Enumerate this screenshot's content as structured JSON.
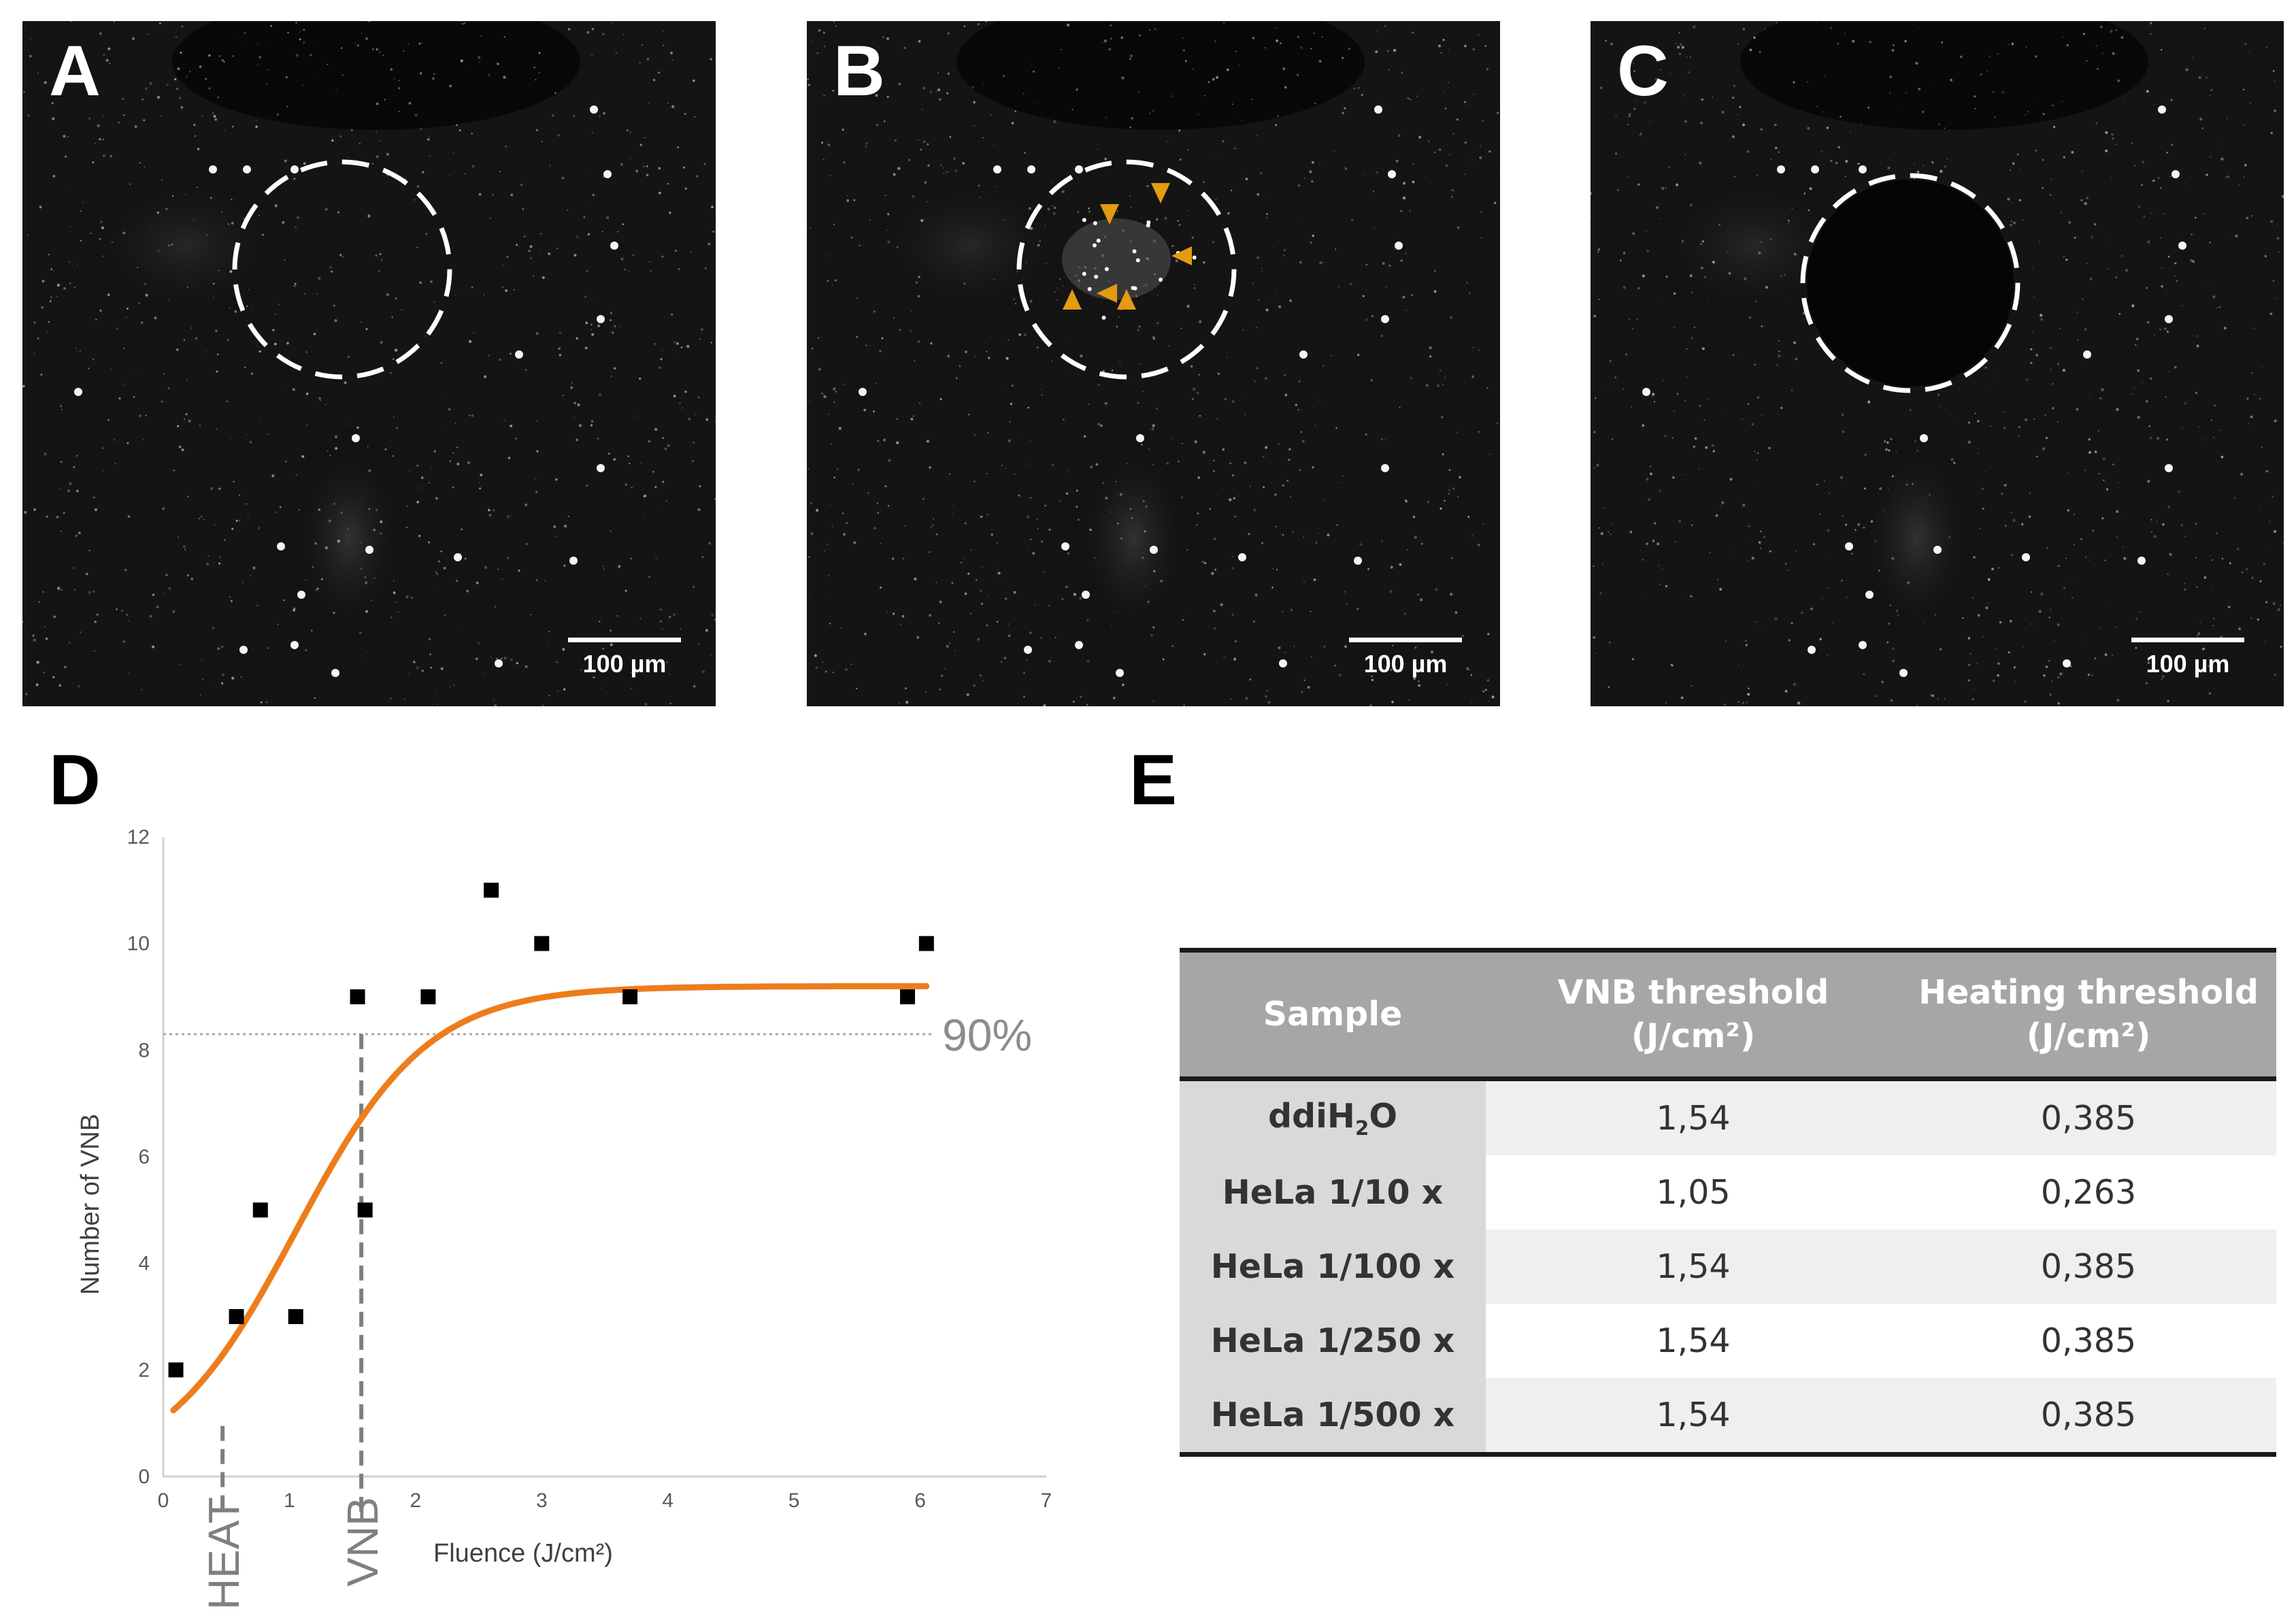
{
  "panels": {
    "A": {
      "letter": "A",
      "scale_label": "100 µm"
    },
    "B": {
      "letter": "B",
      "scale_label": "100 µm"
    },
    "C": {
      "letter": "C",
      "scale_label": "100 µm"
    },
    "D": {
      "letter": "D"
    },
    "E": {
      "letter": "E"
    }
  },
  "colors": {
    "fit_curve": "#ed7d1c",
    "arrowhead": "#e39b11",
    "guide": "#7f7f7f",
    "table_header": "#a6a6a6"
  },
  "chart_data": {
    "type": "scatter",
    "title": "",
    "xlabel": "Fluence (J/cm²)",
    "ylabel": "Number of VNB",
    "xlim": [
      0,
      7
    ],
    "ylim": [
      0,
      12
    ],
    "xticks": [
      0,
      1,
      2,
      3,
      4,
      5,
      6,
      7
    ],
    "yticks": [
      0,
      2,
      4,
      6,
      8,
      10,
      12
    ],
    "points": [
      {
        "x": 0.1,
        "y": 2
      },
      {
        "x": 0.58,
        "y": 3
      },
      {
        "x": 0.77,
        "y": 5
      },
      {
        "x": 1.05,
        "y": 3
      },
      {
        "x": 1.54,
        "y": 9
      },
      {
        "x": 1.6,
        "y": 5
      },
      {
        "x": 2.1,
        "y": 9
      },
      {
        "x": 2.6,
        "y": 11
      },
      {
        "x": 3.0,
        "y": 10
      },
      {
        "x": 3.7,
        "y": 9
      },
      {
        "x": 5.9,
        "y": 9
      },
      {
        "x": 6.05,
        "y": 10
      }
    ],
    "fit": {
      "model": "logistic",
      "top": 9.2,
      "x0": 1.05,
      "slope": 5.5,
      "x_range": [
        0.08,
        6.05
      ]
    },
    "threshold_line": {
      "y": 8.3,
      "label": "90%"
    },
    "markers": [
      {
        "x": 0.47,
        "label": "HEAT"
      },
      {
        "x": 1.57,
        "label": "VNB"
      }
    ]
  },
  "table": {
    "headers": [
      "Sample",
      "VNB threshold",
      "Heating threshold"
    ],
    "unit": "(J/cm²)",
    "rows": [
      {
        "sample_base": "ddiH",
        "sample_sub": "2",
        "sample_tail": "O",
        "vnb": "1,54",
        "heat": "0,385"
      },
      {
        "sample_base": "HeLa 1/10 x",
        "sample_sub": "",
        "sample_tail": "",
        "vnb": "1,05",
        "heat": "0,263"
      },
      {
        "sample_base": "HeLa 1/100 x",
        "sample_sub": "",
        "sample_tail": "",
        "vnb": "1,54",
        "heat": "0,385"
      },
      {
        "sample_base": "HeLa 1/250 x",
        "sample_sub": "",
        "sample_tail": "",
        "vnb": "1,54",
        "heat": "0,385"
      },
      {
        "sample_base": "HeLa 1/500 x",
        "sample_sub": "",
        "sample_tail": "",
        "vnb": "1,54",
        "heat": "0,385"
      }
    ]
  }
}
